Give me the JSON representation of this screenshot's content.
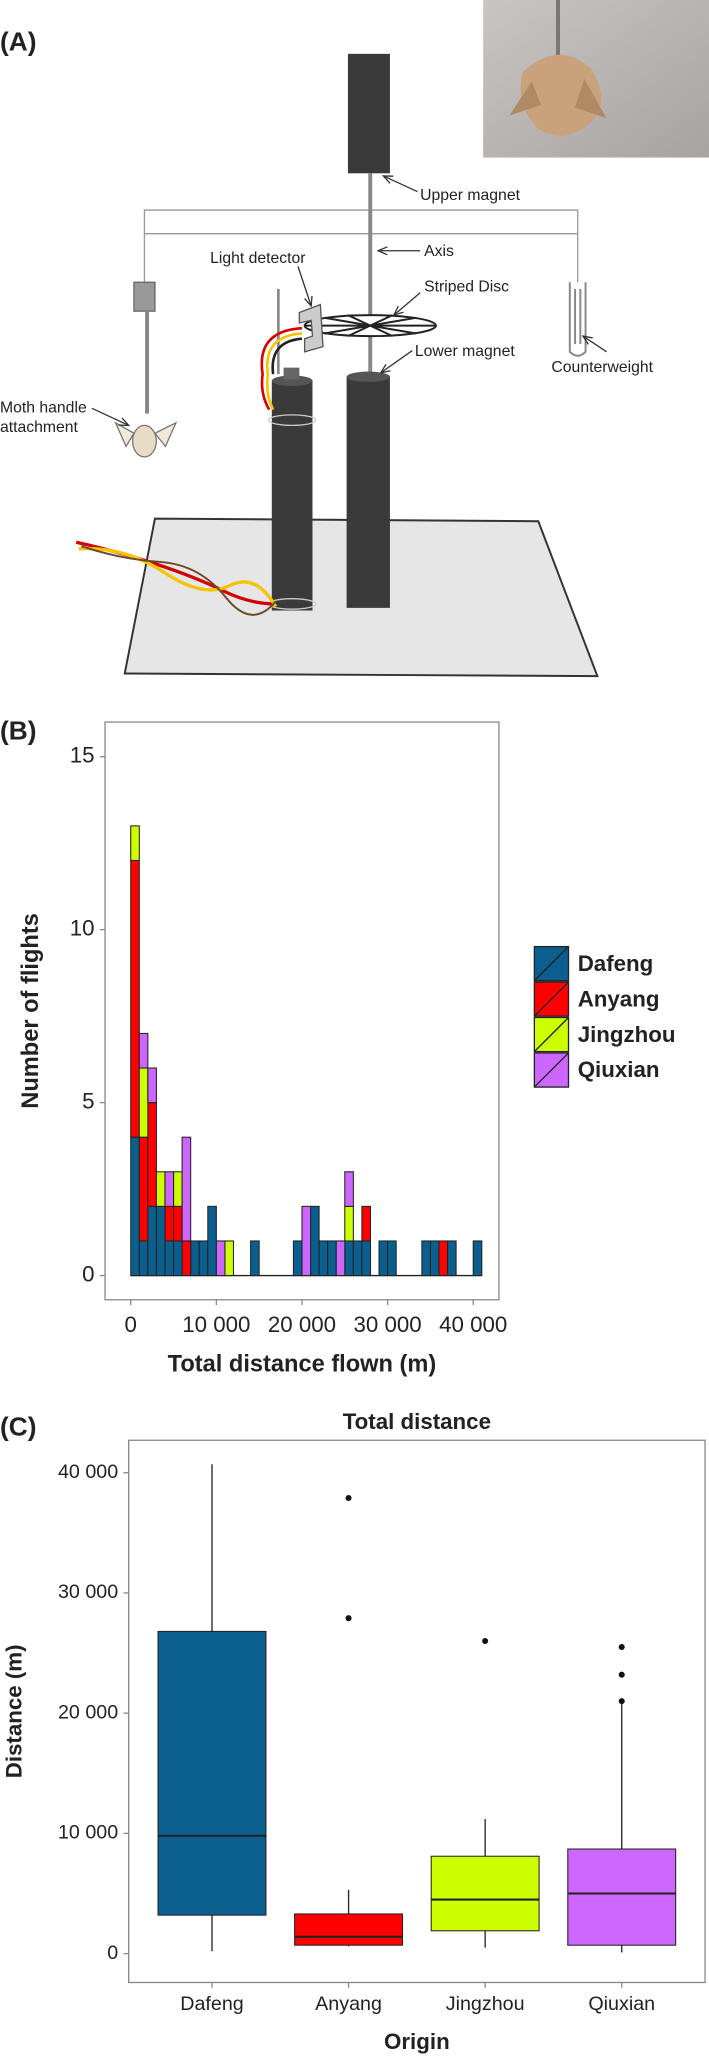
{
  "panel_labels": [
    "(A)",
    "(B)",
    "(C)"
  ],
  "diagram": {
    "labels": {
      "upper_magnet": "Upper magnet",
      "axis": "Axis",
      "light_detector": "Light detector",
      "striped_disc": "Striped Disc",
      "lower_magnet": "Lower magnet",
      "counterweight": "Counterweight",
      "moth_handle": [
        "Moth handle",
        "attachment"
      ]
    }
  },
  "chart_data": [
    {
      "type": "histogram",
      "xlabel": "Total distance flown (m)",
      "ylabel": "Number of flights",
      "bins": [
        0,
        1000,
        2000,
        3000,
        4000,
        5000,
        6000,
        7000,
        8000,
        9000,
        10000,
        11000,
        12000,
        13000,
        14000,
        15000,
        16000,
        17000,
        18000,
        19000,
        20000,
        21000,
        22000,
        23000,
        24000,
        25000,
        26000,
        27000,
        28000,
        29000,
        30000,
        31000,
        32000,
        33000,
        34000,
        35000,
        36000,
        37000,
        38000,
        39000,
        40000,
        41000
      ],
      "series": [
        {
          "name": "Dafeng",
          "color": "#0b5f8e",
          "values": [
            4,
            1,
            2,
            2,
            1,
            1,
            0,
            1,
            1,
            2,
            0,
            0,
            0,
            0,
            1,
            0,
            0,
            0,
            0,
            1,
            0,
            2,
            1,
            1,
            0,
            1,
            1,
            1,
            0,
            1,
            1,
            0,
            0,
            0,
            1,
            1,
            0,
            1,
            0,
            0,
            1
          ]
        },
        {
          "name": "Anyang",
          "color": "#ff0000",
          "values": [
            8,
            3,
            3,
            0,
            1,
            1,
            1,
            0,
            0,
            0,
            0,
            0,
            0,
            0,
            0,
            0,
            0,
            0,
            0,
            0,
            0,
            0,
            0,
            0,
            0,
            0,
            0,
            1,
            0,
            0,
            0,
            0,
            0,
            0,
            0,
            0,
            1,
            0,
            0,
            0,
            0
          ]
        },
        {
          "name": "Jingzhou",
          "color": "#ccff00",
          "values": [
            1,
            2,
            0,
            1,
            0,
            1,
            0,
            0,
            0,
            0,
            0,
            1,
            0,
            0,
            0,
            0,
            0,
            0,
            0,
            0,
            0,
            0,
            0,
            0,
            0,
            1,
            0,
            0,
            0,
            0,
            0,
            0,
            0,
            0,
            0,
            0,
            0,
            0,
            0,
            0,
            0
          ]
        },
        {
          "name": "Qiuxian",
          "color": "#cc66ff",
          "values": [
            0,
            1,
            1,
            0,
            1,
            0,
            3,
            0,
            0,
            0,
            1,
            0,
            0,
            0,
            0,
            0,
            0,
            0,
            0,
            0,
            2,
            0,
            0,
            0,
            1,
            1,
            0,
            0,
            0,
            0,
            0,
            0,
            0,
            0,
            0,
            0,
            0,
            0,
            0,
            0,
            0
          ]
        }
      ],
      "xlim": [
        -3000,
        43000
      ],
      "ylim": [
        -0.7,
        16
      ],
      "xticks": [
        0,
        {
          "value": 10000,
          "label": "10 000"
        },
        {
          "value": 20000,
          "label": "20 000"
        },
        {
          "value": 30000,
          "label": "30 000"
        },
        {
          "value": 40000,
          "label": "40 000"
        }
      ],
      "yticks": [
        0,
        5,
        10,
        15
      ],
      "grid": false,
      "legend": "right"
    },
    {
      "type": "box",
      "title": "Total distance",
      "xlabel": "Origin",
      "ylabel": "Distance (m)",
      "categories": [
        "Dafeng",
        "Anyang",
        "Jingzhou",
        "Qiuxian"
      ],
      "boxes": [
        {
          "color": "#0b5f8e",
          "min": 200,
          "q1": 3200,
          "median": 9800,
          "q3": 26800,
          "max": 40700,
          "outliers": []
        },
        {
          "color": "#ff0000",
          "min": 600,
          "q1": 700,
          "median": 1400,
          "q3": 3300,
          "max": 5300,
          "outliers": [
            27900,
            37900
          ]
        },
        {
          "color": "#ccff00",
          "min": 500,
          "q1": 1900,
          "median": 4500,
          "q3": 8100,
          "max": 11200,
          "outliers": [
            26000
          ]
        },
        {
          "color": "#cc66ff",
          "min": 100,
          "q1": 700,
          "median": 5000,
          "q3": 8700,
          "max": 20800,
          "outliers": [
            21000,
            23200,
            25500
          ]
        }
      ],
      "ylim": [
        -2400,
        42700
      ],
      "yticks": [
        0,
        {
          "value": 10000,
          "label": "10 000"
        },
        {
          "value": 20000,
          "label": "20 000"
        },
        {
          "value": 30000,
          "label": "30 000"
        },
        {
          "value": 40000,
          "label": "40 000"
        }
      ],
      "grid": false
    }
  ]
}
